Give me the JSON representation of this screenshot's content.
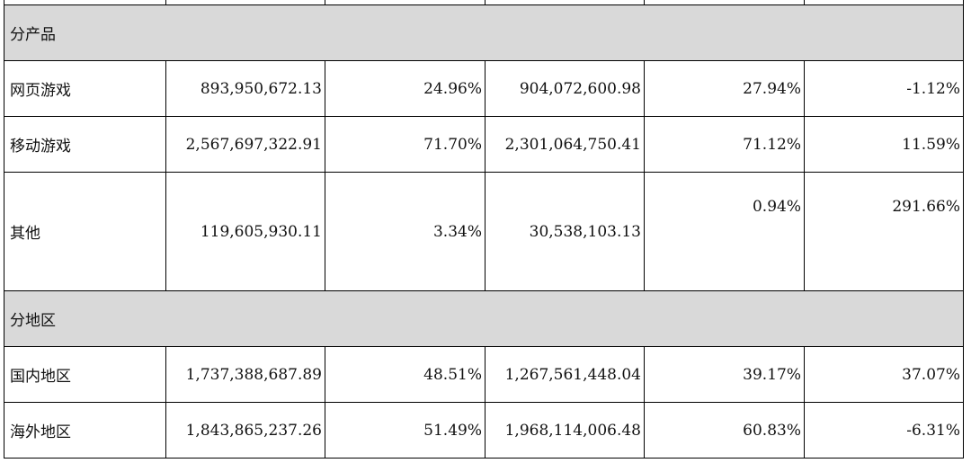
{
  "sections": [
    {
      "title": "分产品",
      "rows": [
        {
          "label": "网页游戏",
          "c1": "893,950,672.13",
          "c2": "24.96%",
          "c3": "904,072,600.98",
          "c4": "27.94%",
          "c5": "-1.12%"
        },
        {
          "label": "移动游戏",
          "c1": "2,567,697,322.91",
          "c2": "71.70%",
          "c3": "2,301,064,750.41",
          "c4": "71.12%",
          "c5": "11.59%"
        },
        {
          "label": "其他",
          "c1": "119,605,930.11",
          "c2": "3.34%",
          "c3": "30,538,103.13",
          "c4": "0.94%",
          "c5": "291.66%"
        }
      ]
    },
    {
      "title": "分地区",
      "rows": [
        {
          "label": "国内地区",
          "c1": "1,737,388,687.89",
          "c2": "48.51%",
          "c3": "1,267,561,448.04",
          "c4": "39.17%",
          "c5": "37.07%"
        },
        {
          "label": "海外地区",
          "c1": "1,843,865,237.26",
          "c2": "51.49%",
          "c3": "1,968,114,006.48",
          "c4": "60.83%",
          "c5": "-6.31%"
        }
      ]
    }
  ]
}
